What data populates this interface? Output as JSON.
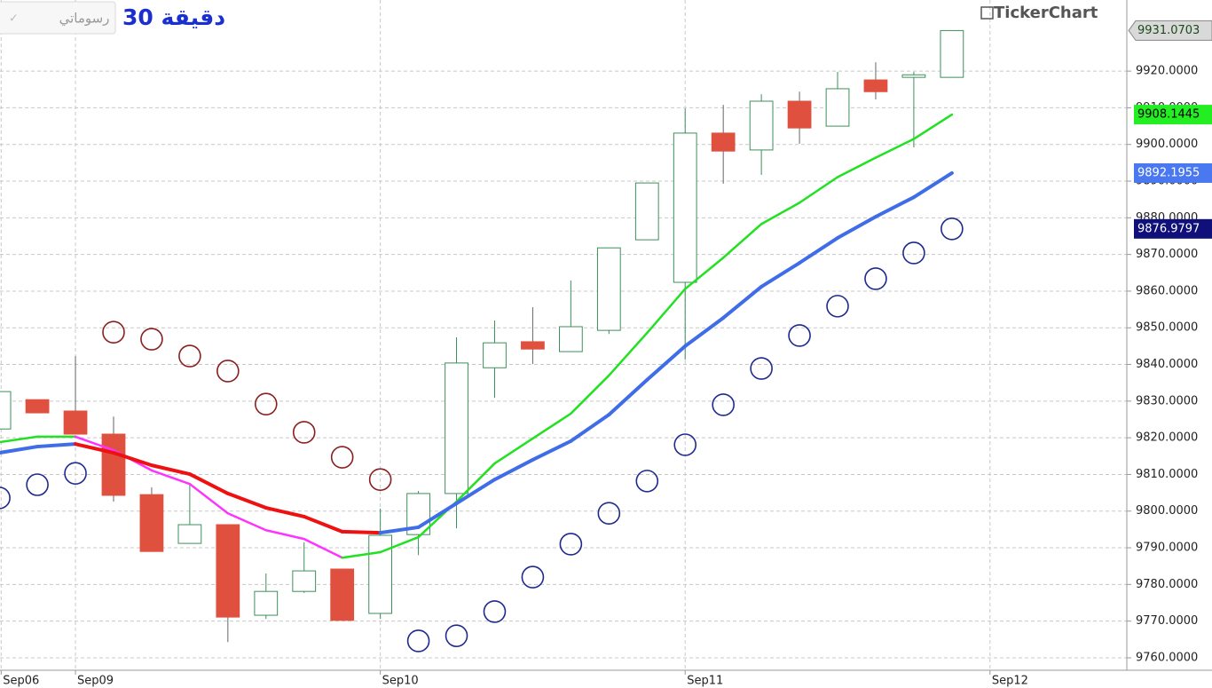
{
  "toolbar": {
    "drawings_button": "رسوماتي"
  },
  "chart_data": {
    "type": "candlestick",
    "title": "30 دقيقة",
    "brand": "TickerChart",
    "x": [
      0,
      1,
      2,
      3,
      4,
      5,
      6,
      7,
      8,
      9,
      10,
      11,
      12,
      13,
      14,
      15,
      16,
      17,
      18,
      19,
      20,
      21,
      22,
      23,
      24,
      25
    ],
    "open": [
      9822.4,
      9830.4,
      9827.3,
      9821.0,
      9804.5,
      9791.2,
      9796.3,
      9771.6,
      9778.1,
      9784.2,
      9772.1,
      9793.6,
      9804.8,
      9839.1,
      9846.2,
      9843.5,
      9849.3,
      9874.0,
      9862.4,
      9903.1,
      9898.5,
      9911.8,
      9905.0,
      9917.6,
      9918.3,
      9918.3
    ],
    "high": [
      9832.6,
      9830.4,
      9842.3,
      9825.8,
      9806.5,
      9807.4,
      9796.3,
      9783.0,
      9791.5,
      9784.2,
      9800.7,
      9805.5,
      9847.4,
      9852.0,
      9855.6,
      9862.9,
      9871.8,
      9889.5,
      9909.8,
      9910.8,
      9913.7,
      9914.4,
      9919.8,
      9922.4,
      9919.8,
      9931.0703
    ],
    "low": [
      9822.4,
      9826.8,
      9821.0,
      9802.6,
      9789.0,
      9791.2,
      9764.3,
      9770.6,
      9777.7,
      9770.2,
      9770.6,
      9788.0,
      9795.3,
      9830.9,
      9840.1,
      9843.5,
      9848.3,
      9874.0,
      9841.3,
      9889.3,
      9891.7,
      9900.2,
      9905.0,
      9912.3,
      9899.2,
      9918.3
    ],
    "close": [
      9832.6,
      9826.8,
      9821.0,
      9804.3,
      9789.0,
      9796.3,
      9771.1,
      9778.1,
      9783.7,
      9770.2,
      9793.4,
      9804.8,
      9840.4,
      9845.9,
      9844.2,
      9850.3,
      9871.8,
      9889.5,
      9903.1,
      9898.2,
      9911.8,
      9904.5,
      9915.2,
      9914.4,
      9919.0,
      9931.0703
    ],
    "up_color": "#3d8f5a",
    "down_color": "#e0503e",
    "close_tag_color": "#d9d9d9",
    "lines": [
      {
        "color": "#22e022",
        "down_color": "#ff33ff",
        "width": 2.5,
        "tag_color": "#22ee22",
        "values": [
          9818.8,
          9820.3,
          9820.3,
          9816.6,
          9811.1,
          9807.4,
          9799.4,
          9794.8,
          9792.4,
          9787.3,
          9788.8,
          9792.9,
          9802.6,
          9813.0,
          9819.8,
          9826.6,
          9837.0,
          9848.6,
          9860.6,
          9869.1,
          9878.3,
          9884.1,
          9891.1,
          9896.4,
          9901.5,
          9908.1445
        ]
      },
      {
        "color": "#3f6de8",
        "down_color": "#ee1111",
        "width": 4,
        "tag_color": "#4a78f0",
        "values": [
          9815.9,
          9817.6,
          9818.3,
          9815.9,
          9812.5,
          9810.1,
          9804.8,
          9800.9,
          9798.5,
          9794.4,
          9794.1,
          9795.6,
          9802.1,
          9808.6,
          9814.0,
          9819.1,
          9826.3,
          9835.8,
          9845.0,
          9852.7,
          9861.2,
          9867.7,
          9874.5,
          9880.3,
          9885.6,
          9892.1955
        ]
      }
    ],
    "sar": {
      "above_color": "#8b1f1f",
      "below_color": "#1f2a8f",
      "tag_color": "#10107a",
      "values": [
        9803.6,
        9807.2,
        9810.3,
        9848.8,
        9846.9,
        9842.3,
        9838.2,
        9829.2,
        9821.5,
        9814.7,
        9808.6,
        9764.6,
        9766.0,
        9772.6,
        9782.0,
        9791.0,
        9799.4,
        9808.2,
        9818.1,
        9829.0,
        9838.9,
        9847.9,
        9855.9,
        9863.4,
        9870.4,
        9876.9797
      ]
    },
    "xlim": [
      0.02,
      29.59
    ],
    "xticks": [
      {
        "value": 0.05,
        "label": "Sep06"
      },
      {
        "value": 2,
        "label": "Sep09"
      },
      {
        "value": 10,
        "label": "Sep10"
      },
      {
        "value": 18,
        "label": "Sep11"
      },
      {
        "value": 26,
        "label": "Sep12"
      }
    ],
    "ylim": [
      9756.6,
      9939.4
    ],
    "yticks": [
      {
        "value": 9760,
        "label": "9760.0000"
      },
      {
        "value": 9770,
        "label": "9770.0000"
      },
      {
        "value": 9780,
        "label": "9780.0000"
      },
      {
        "value": 9790,
        "label": "9790.0000"
      },
      {
        "value": 9800,
        "label": "9800.0000"
      },
      {
        "value": 9810,
        "label": "9810.0000"
      },
      {
        "value": 9820,
        "label": "9820.0000"
      },
      {
        "value": 9830,
        "label": "9830.0000"
      },
      {
        "value": 9840,
        "label": "9840.0000"
      },
      {
        "value": 9850,
        "label": "9850.0000"
      },
      {
        "value": 9860,
        "label": "9860.0000"
      },
      {
        "value": 9870,
        "label": "9870.0000"
      },
      {
        "value": 9880,
        "label": "9880.0000"
      },
      {
        "value": 9890,
        "label": "9890.0000"
      },
      {
        "value": 9900,
        "label": "9900.0000"
      },
      {
        "value": 9910,
        "label": "9910.0000"
      },
      {
        "value": 9920,
        "label": "9920.0000"
      }
    ],
    "grid": true
  }
}
